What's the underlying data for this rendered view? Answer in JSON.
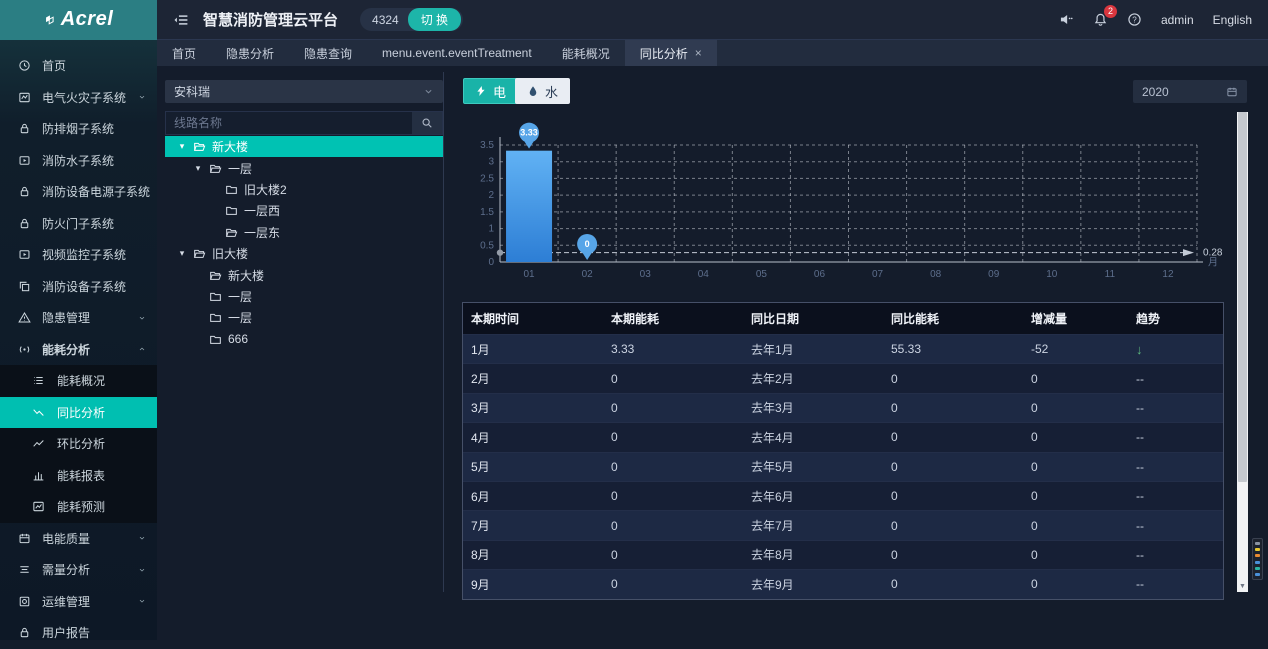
{
  "colors": {
    "accent_teal": "#00bfb1",
    "logo_bg": "#2b7e83",
    "bar_top": "#61b2f4",
    "bar_bottom": "#2d7ed5",
    "pin_blue": "#57a5e8",
    "trend_down_green": "#5cb87e",
    "badge_red": "#d9363e"
  },
  "header": {
    "logo_text": "Acrel",
    "title": "智慧消防管理云平台",
    "station_count": "4324",
    "switch_label": "切 换",
    "notification_count": "2",
    "username": "admin",
    "language": "English"
  },
  "tabs": [
    {
      "label": "首页",
      "active": false,
      "closable": false
    },
    {
      "label": "隐患分析",
      "active": false,
      "closable": false
    },
    {
      "label": "隐患查询",
      "active": false,
      "closable": false
    },
    {
      "label": "menu.event.eventTreatment",
      "active": false,
      "closable": false
    },
    {
      "label": "能耗概况",
      "active": false,
      "closable": false
    },
    {
      "label": "同比分析",
      "active": true,
      "closable": true
    }
  ],
  "sidebar": {
    "items": [
      {
        "label": "首页",
        "icon": "home"
      },
      {
        "label": "电气火灾子系统",
        "icon": "chart",
        "chevron": "down"
      },
      {
        "label": "防排烟子系统",
        "icon": "lock"
      },
      {
        "label": "消防水子系统",
        "icon": "video"
      },
      {
        "label": "消防设备电源子系统",
        "icon": "lock"
      },
      {
        "label": "防火门子系统",
        "icon": "lock"
      },
      {
        "label": "视频监控子系统",
        "icon": "video"
      },
      {
        "label": "消防设备子系统",
        "icon": "copy"
      },
      {
        "label": "隐患管理",
        "icon": "warning",
        "chevron": "down"
      },
      {
        "label": "能耗分析",
        "icon": "meter",
        "chevron": "up",
        "expanded": true,
        "children": [
          {
            "label": "能耗概况",
            "icon": "list"
          },
          {
            "label": "同比分析",
            "icon": "trend-down",
            "active": true
          },
          {
            "label": "环比分析",
            "icon": "trend-up"
          },
          {
            "label": "能耗报表",
            "icon": "bar-chart"
          },
          {
            "label": "能耗预测",
            "icon": "forecast"
          }
        ]
      },
      {
        "label": "电能质量",
        "icon": "calendar",
        "chevron": "down"
      },
      {
        "label": "需量分析",
        "icon": "list-lines",
        "chevron": "down"
      },
      {
        "label": "运维管理",
        "icon": "ops",
        "chevron": "down"
      },
      {
        "label": "用户报告",
        "icon": "report"
      }
    ]
  },
  "filter_panel": {
    "org_select_value": "安科瑞",
    "search_placeholder": "线路名称",
    "tree": [
      {
        "label": "新大楼",
        "depth": 0,
        "expander": true,
        "folder": "open",
        "selected": true
      },
      {
        "label": "一层",
        "depth": 1,
        "expander": true,
        "folder": "open",
        "selected": false
      },
      {
        "label": "旧大楼2",
        "depth": 2,
        "expander": false,
        "folder": "closed",
        "selected": false
      },
      {
        "label": "一层西",
        "depth": 2,
        "expander": false,
        "folder": "closed",
        "selected": false
      },
      {
        "label": "一层东",
        "depth": 2,
        "expander": false,
        "folder": "open",
        "selected": false
      },
      {
        "label": "旧大楼",
        "depth": 0,
        "expander": true,
        "folder": "open",
        "selected": false
      },
      {
        "label": "新大楼",
        "depth": 1,
        "expander": false,
        "folder": "open",
        "selected": false
      },
      {
        "label": "一层",
        "depth": 1,
        "expander": false,
        "folder": "closed",
        "selected": false
      },
      {
        "label": "一层",
        "depth": 1,
        "expander": false,
        "folder": "closed",
        "selected": false
      },
      {
        "label": "666",
        "depth": 1,
        "expander": false,
        "folder": "closed",
        "selected": false
      }
    ]
  },
  "toolbar": {
    "electric_label": "电",
    "water_label": "水",
    "year": "2020"
  },
  "chart_data": {
    "type": "bar",
    "title": "",
    "categories": [
      "01",
      "02",
      "03",
      "04",
      "05",
      "06",
      "07",
      "08",
      "09",
      "10",
      "11",
      "12"
    ],
    "values": [
      3.33,
      0,
      null,
      null,
      null,
      null,
      null,
      null,
      null,
      null,
      null,
      null
    ],
    "ylim": [
      0,
      3.5
    ],
    "yticks": [
      0,
      0.5,
      1,
      1.5,
      2,
      2.5,
      3,
      3.5
    ],
    "xlabel": "月",
    "ylabel": "",
    "x_unit_label": "月",
    "average_markline": 0.28,
    "grid": "dashed",
    "legend": "none"
  },
  "table": {
    "headers": [
      "本期时间",
      "本期能耗",
      "同比日期",
      "同比能耗",
      "增减量",
      "趋势"
    ],
    "rows": [
      [
        "1月",
        "3.33",
        "去年1月",
        "55.33",
        "-52",
        "down"
      ],
      [
        "2月",
        "0",
        "去年2月",
        "0",
        "0",
        "--"
      ],
      [
        "3月",
        "0",
        "去年3月",
        "0",
        "0",
        "--"
      ],
      [
        "4月",
        "0",
        "去年4月",
        "0",
        "0",
        "--"
      ],
      [
        "5月",
        "0",
        "去年5月",
        "0",
        "0",
        "--"
      ],
      [
        "6月",
        "0",
        "去年6月",
        "0",
        "0",
        "--"
      ],
      [
        "7月",
        "0",
        "去年7月",
        "0",
        "0",
        "--"
      ],
      [
        "8月",
        "0",
        "去年8月",
        "0",
        "0",
        "--"
      ],
      [
        "9月",
        "0",
        "去年9月",
        "0",
        "0",
        "--"
      ]
    ]
  }
}
